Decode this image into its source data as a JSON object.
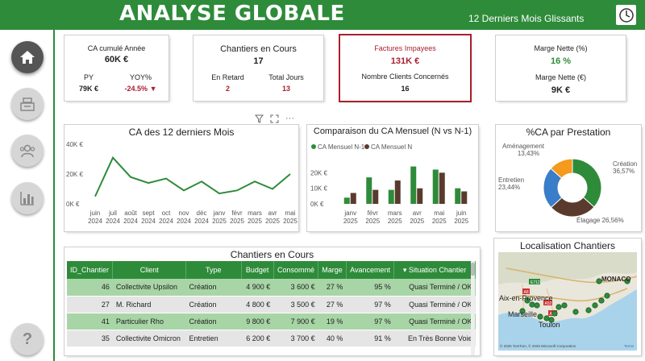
{
  "header": {
    "title": "ANALYSE GLOBALE",
    "subtitle": "12 Derniers Mois Glissants"
  },
  "kpi_ca": {
    "label": "CA cumulé Année",
    "value": "60K €",
    "py_label": "PY",
    "py_value": "79K €",
    "yoy_label": "YOY%",
    "yoy_value": "-24.5%",
    "yoy_arrow": "▼"
  },
  "kpi_chantiers": {
    "label": "Chantiers en Cours",
    "value": "17",
    "retard_label": "En Retard",
    "retard_value": "2",
    "jours_label": "Total Jours",
    "jours_value": "13"
  },
  "kpi_factures": {
    "label": "Factures Impayees",
    "value": "131K €",
    "clients_label": "Nombre Clients Concernés",
    "clients_value": "16"
  },
  "kpi_marge": {
    "pct_label": "Marge Nette (%)",
    "pct_value": "16 %",
    "eur_label": "Marge Nette (€)",
    "eur_value": "9K €"
  },
  "colors": {
    "green": "#2e8b3a",
    "brown": "#5b3a2e",
    "blue": "#3a7dc9",
    "orange": "#f59a1c",
    "red": "#a8212e"
  },
  "chart_data": [
    {
      "type": "line",
      "title": "CA des 12 derniers Mois",
      "categories": [
        "juin 2024",
        "juil 2024",
        "août 2024",
        "sept 2024",
        "oct 2024",
        "nov 2024",
        "déc 2024",
        "janv 2025",
        "févr 2025",
        "mars 2025",
        "avr 2025",
        "mai 2025"
      ],
      "values": [
        5,
        31,
        18,
        14,
        17,
        9,
        15,
        7,
        9,
        15,
        10,
        20
      ],
      "yticks": [
        "0K €",
        "20K €",
        "40K €"
      ],
      "ylim": [
        0,
        40
      ],
      "ylabel": "",
      "xlabel": ""
    },
    {
      "type": "bar",
      "title": "Comparaison du CA Mensuel (N vs N-1)",
      "legend": [
        "CA Mensuel N-1",
        "CA Mensuel N"
      ],
      "categories": [
        "janv 2025",
        "févr 2025",
        "mars 2025",
        "avr 2025",
        "mai 2025",
        "juin 2025"
      ],
      "series": [
        {
          "name": "CA Mensuel N-1",
          "values": [
            4,
            17,
            9,
            24,
            22,
            10
          ]
        },
        {
          "name": "CA Mensuel N",
          "values": [
            7,
            9,
            15,
            10,
            20,
            8
          ]
        }
      ],
      "yticks": [
        "0K €",
        "10K €",
        "20K €"
      ],
      "ylim": [
        0,
        30
      ]
    },
    {
      "type": "pie",
      "title": "%CA par Prestation",
      "slices": [
        {
          "label": "Création",
          "pct_label": "36,57%",
          "value": 36.57
        },
        {
          "label": "Élagage",
          "pct_label": "26,56%",
          "value": 26.56
        },
        {
          "label": "Entretien",
          "pct_label": "23,44%",
          "value": 23.44
        },
        {
          "label": "Aménagement",
          "pct_label": "13,43%",
          "value": 13.43
        }
      ]
    }
  ],
  "table": {
    "title": "Chantiers en Cours",
    "columns": [
      "ID_Chantier",
      "Client",
      "Type",
      "Budget",
      "Consommé",
      "Marge",
      "Avancement",
      "Situation Chantier"
    ],
    "sort_arrow": "▾",
    "rows": [
      [
        "46",
        "Collectivite Upsilon",
        "Création",
        "4 900 €",
        "3 600 €",
        "27 %",
        "95 %",
        "Quasi Terminé / OK"
      ],
      [
        "27",
        "M. Richard",
        "Création",
        "4 800 €",
        "3 500 €",
        "27 %",
        "97 %",
        "Quasi Terminé / OK"
      ],
      [
        "41",
        "Particulier Rho",
        "Création",
        "9 800 €",
        "7 900 €",
        "19 %",
        "97 %",
        "Quasi Terminé / OK"
      ],
      [
        "35",
        "Collectivite Omicron",
        "Entretien",
        "6 200 €",
        "3 700 €",
        "40 %",
        "91 %",
        "En Très Bonne Voie"
      ]
    ]
  },
  "map": {
    "title": "Localisation Chantiers",
    "cities": [
      "MONACO",
      "Aix-en-Provence",
      "Marseille",
      "Toulon"
    ],
    "roads": [
      "E712",
      "A8",
      "A52",
      "A50"
    ],
    "copyright": "© 2025 TomTom, © 2025 Microsoft Corporation",
    "terms": "Terms"
  },
  "toolbar": {
    "filter": "filter-icon",
    "focus": "focus-icon",
    "more": "···"
  }
}
